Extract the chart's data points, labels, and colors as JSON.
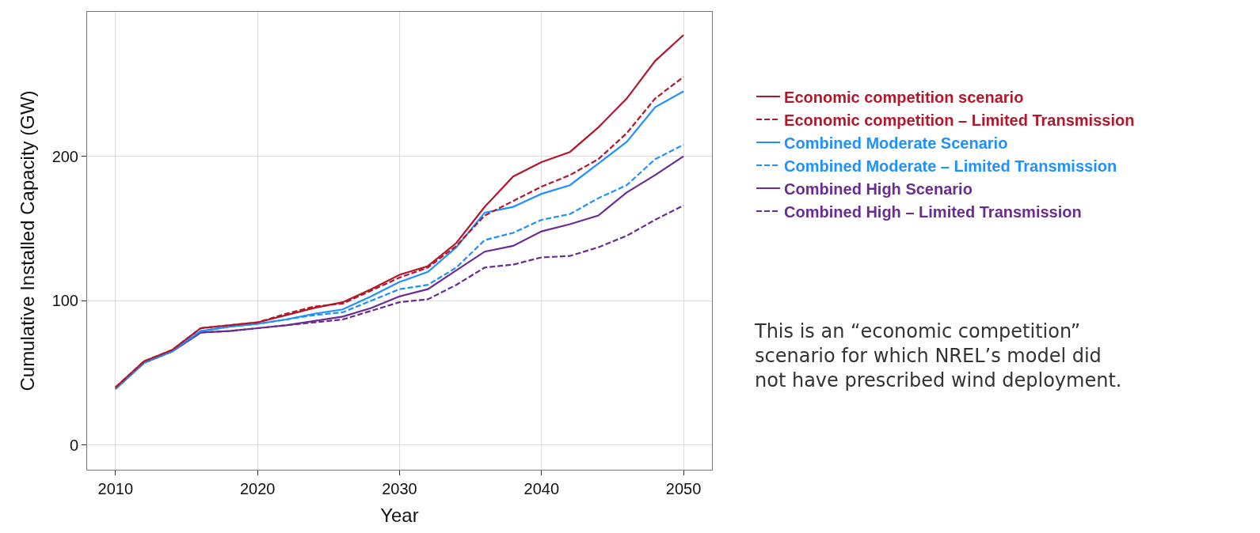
{
  "chart_data": {
    "type": "line",
    "xlabel": "Year",
    "ylabel": "Cumulative Installed Capacity (GW)",
    "x": [
      2010,
      2012,
      2014,
      2016,
      2018,
      2020,
      2022,
      2024,
      2026,
      2028,
      2030,
      2032,
      2034,
      2036,
      2038,
      2040,
      2042,
      2044,
      2046,
      2048,
      2050
    ],
    "series": [
      {
        "name": "Economic competition scenario",
        "color": "#b2182b",
        "line_style": "solid",
        "values": [
          40,
          58,
          66,
          81,
          83,
          85,
          90,
          95,
          99,
          108,
          118,
          124,
          140,
          165,
          186,
          196,
          203,
          220,
          240,
          266,
          284
        ]
      },
      {
        "name": "Economic competition – Limited Transmission",
        "color": "#b2182b",
        "line_style": "dashed",
        "values": [
          40,
          58,
          66,
          81,
          83,
          85,
          91,
          96,
          98,
          107,
          116,
          123,
          138,
          159,
          169,
          179,
          187,
          198,
          216,
          240,
          255
        ]
      },
      {
        "name": "Combined Moderate Scenario",
        "color": "#1e90ff",
        "line_style": "solid",
        "values": [
          39,
          57,
          65,
          79,
          82,
          84,
          87,
          91,
          94,
          103,
          113,
          120,
          137,
          161,
          165,
          174,
          180,
          195,
          210,
          234,
          245
        ]
      },
      {
        "name": "Combined Moderate – Limited Transmission",
        "color": "#1e90ff",
        "line_style": "dashed",
        "values": [
          39,
          57,
          65,
          79,
          82,
          84,
          87,
          90,
          92,
          100,
          108,
          111,
          123,
          142,
          147,
          156,
          160,
          171,
          180,
          198,
          208
        ]
      },
      {
        "name": "Combined High Scenario",
        "color": "#6a2c91",
        "line_style": "solid",
        "values": [
          39,
          57,
          65,
          78,
          79,
          81,
          83,
          86,
          89,
          95,
          103,
          108,
          121,
          134,
          138,
          148,
          153,
          159,
          175,
          187,
          200
        ]
      },
      {
        "name": "Combined High – Limited Transmission",
        "color": "#6a2c91",
        "line_style": "dashed",
        "values": [
          39,
          57,
          65,
          78,
          79,
          81,
          83,
          85,
          87,
          93,
          99,
          101,
          111,
          123,
          125,
          130,
          131,
          137,
          145,
          156,
          166
        ]
      }
    ],
    "xlim": [
      2008,
      2052
    ],
    "ylim": [
      -17,
      300
    ],
    "xticks": [
      2010,
      2020,
      2030,
      2040,
      2050
    ],
    "yticks": [
      0,
      100,
      200
    ],
    "grid": true,
    "legend": "right",
    "marker": "none",
    "annotations": [
      "This is an “economic competition” scenario for which NREL’s model did not have prescribed wind deployment."
    ]
  }
}
